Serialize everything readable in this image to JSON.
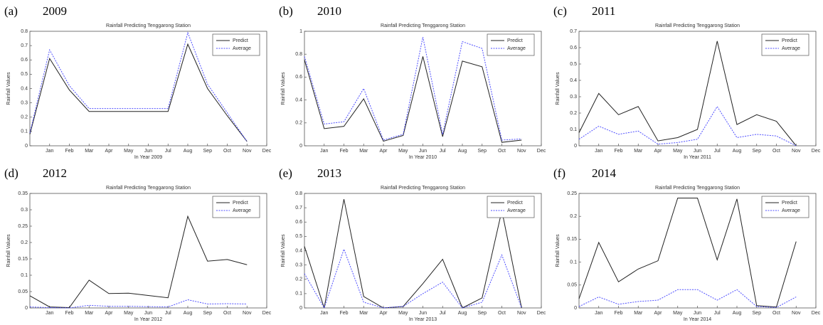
{
  "chart_data": [
    {
      "type": "line",
      "panel": "(a)",
      "year": "2009",
      "title": "Rainfall Predicting Tenggarong Station",
      "xlabel": "In Year 2009",
      "ylabel": "Rainfall Values",
      "x": [
        0,
        1,
        2,
        3,
        4,
        5,
        6,
        7,
        8,
        9,
        10,
        11
      ],
      "xlim": [
        0,
        12
      ],
      "xticks": [
        {
          "value": 1,
          "label": "Jan"
        },
        {
          "value": 2,
          "label": "Feb"
        },
        {
          "value": 3,
          "label": "Mar"
        },
        {
          "value": 4,
          "label": "Apr"
        },
        {
          "value": 5,
          "label": "May"
        },
        {
          "value": 6,
          "label": "Jun"
        },
        {
          "value": 7,
          "label": "Jul"
        },
        {
          "value": 8,
          "label": "Aug"
        },
        {
          "value": 9,
          "label": "Sep"
        },
        {
          "value": 10,
          "label": "Oct"
        },
        {
          "value": 11,
          "label": "Nov"
        },
        {
          "value": 12,
          "label": "Dec"
        }
      ],
      "ylim": [
        0,
        0.8
      ],
      "yticks": [
        0,
        0.1,
        0.2,
        0.3,
        0.4,
        0.5,
        0.6,
        0.7,
        0.8
      ],
      "legend": "upper right",
      "series": [
        {
          "name": "Predict",
          "color": "#222222",
          "style": "solid",
          "values": [
            0.08,
            0.61,
            0.39,
            0.24,
            0.24,
            0.24,
            0.24,
            0.24,
            0.71,
            0.4,
            0.21,
            0.03
          ]
        },
        {
          "name": "Average",
          "color": "#5050ff",
          "style": "dotted",
          "values": [
            0.09,
            0.67,
            0.42,
            0.26,
            0.26,
            0.26,
            0.26,
            0.26,
            0.79,
            0.43,
            0.23,
            0.03
          ]
        }
      ]
    },
    {
      "type": "line",
      "panel": "(b)",
      "year": "2010",
      "title": "Rainfall Predicting Tenggarong Station",
      "xlabel": "In Year 2010",
      "ylabel": "Rainfall Values",
      "x": [
        0,
        1,
        2,
        3,
        4,
        5,
        6,
        7,
        8,
        9,
        10,
        11
      ],
      "xlim": [
        0,
        12
      ],
      "xticks": [
        {
          "value": 1,
          "label": "Jan"
        },
        {
          "value": 2,
          "label": "Feb"
        },
        {
          "value": 3,
          "label": "Mar"
        },
        {
          "value": 4,
          "label": "Apr"
        },
        {
          "value": 5,
          "label": "May"
        },
        {
          "value": 6,
          "label": "Jun"
        },
        {
          "value": 7,
          "label": "Jul"
        },
        {
          "value": 8,
          "label": "Aug"
        },
        {
          "value": 9,
          "label": "Sep"
        },
        {
          "value": 10,
          "label": "Oct"
        },
        {
          "value": 11,
          "label": "Nov"
        },
        {
          "value": 12,
          "label": "Dec"
        }
      ],
      "ylim": [
        0,
        1
      ],
      "yticks": [
        0,
        0.2,
        0.4,
        0.6,
        0.8,
        1
      ],
      "legend": "upper right",
      "series": [
        {
          "name": "Predict",
          "color": "#222222",
          "style": "solid",
          "values": [
            0.75,
            0.15,
            0.17,
            0.41,
            0.04,
            0.09,
            0.78,
            0.08,
            0.74,
            0.69,
            0.03,
            0.05
          ]
        },
        {
          "name": "Average",
          "color": "#5050ff",
          "style": "dotted",
          "values": [
            0.78,
            0.19,
            0.21,
            0.5,
            0.05,
            0.1,
            0.95,
            0.1,
            0.91,
            0.85,
            0.05,
            0.06
          ]
        }
      ]
    },
    {
      "type": "line",
      "panel": "(c)",
      "year": "2011",
      "title": "Rainfall Predicting Tenggarong Station",
      "xlabel": "In Year 2011",
      "ylabel": "Rainfall Values",
      "x": [
        0,
        1,
        2,
        3,
        4,
        5,
        6,
        7,
        8,
        9,
        10,
        11
      ],
      "xlim": [
        0,
        12
      ],
      "xticks": [
        {
          "value": 1,
          "label": "Jan"
        },
        {
          "value": 2,
          "label": "Feb"
        },
        {
          "value": 3,
          "label": "Mar"
        },
        {
          "value": 4,
          "label": "Apr"
        },
        {
          "value": 5,
          "label": "May"
        },
        {
          "value": 6,
          "label": "Jun"
        },
        {
          "value": 7,
          "label": "Jul"
        },
        {
          "value": 8,
          "label": "Aug"
        },
        {
          "value": 9,
          "label": "Sep"
        },
        {
          "value": 10,
          "label": "Oct"
        },
        {
          "value": 11,
          "label": "Nov"
        },
        {
          "value": 12,
          "label": "Dec"
        }
      ],
      "ylim": [
        0,
        0.7
      ],
      "yticks": [
        0,
        0.1,
        0.2,
        0.3,
        0.4,
        0.5,
        0.6,
        0.7
      ],
      "legend": "upper right",
      "series": [
        {
          "name": "Predict",
          "color": "#222222",
          "style": "solid",
          "values": [
            0.08,
            0.32,
            0.19,
            0.24,
            0.03,
            0.05,
            0.1,
            0.64,
            0.13,
            0.19,
            0.15,
            0.0
          ]
        },
        {
          "name": "Average",
          "color": "#5050ff",
          "style": "dotted",
          "values": [
            0.04,
            0.12,
            0.07,
            0.09,
            0.01,
            0.02,
            0.04,
            0.24,
            0.05,
            0.07,
            0.06,
            0.0
          ]
        }
      ]
    },
    {
      "type": "line",
      "panel": "(d)",
      "year": "2012",
      "title": "Rainfall Predicting Tenggarong Station",
      "xlabel": "In Year 2012",
      "ylabel": "Rainfall Values",
      "x": [
        0,
        1,
        2,
        3,
        4,
        5,
        6,
        7,
        8,
        9,
        10,
        11
      ],
      "xlim": [
        0,
        12
      ],
      "xticks": [
        {
          "value": 1,
          "label": "Jan"
        },
        {
          "value": 2,
          "label": "Feb"
        },
        {
          "value": 3,
          "label": "Mar"
        },
        {
          "value": 4,
          "label": "Apr"
        },
        {
          "value": 5,
          "label": "May"
        },
        {
          "value": 6,
          "label": "Jun"
        },
        {
          "value": 7,
          "label": "Jul"
        },
        {
          "value": 8,
          "label": "Aug"
        },
        {
          "value": 9,
          "label": "Sep"
        },
        {
          "value": 10,
          "label": "Oct"
        },
        {
          "value": 11,
          "label": "Nov"
        },
        {
          "value": 12,
          "label": "Dec"
        }
      ],
      "ylim": [
        0,
        0.35
      ],
      "yticks": [
        0,
        0.05,
        0.1,
        0.15,
        0.2,
        0.25,
        0.3,
        0.35
      ],
      "legend": "upper right",
      "series": [
        {
          "name": "Predict",
          "color": "#222222",
          "style": "solid",
          "values": [
            0.037,
            0.003,
            0.001,
            0.085,
            0.044,
            0.045,
            0.038,
            0.031,
            0.28,
            0.143,
            0.148,
            0.132
          ]
        },
        {
          "name": "Average",
          "color": "#5050ff",
          "style": "dotted",
          "values": [
            0.003,
            0.001,
            0.0,
            0.008,
            0.005,
            0.005,
            0.004,
            0.003,
            0.025,
            0.012,
            0.013,
            0.012
          ]
        }
      ]
    },
    {
      "type": "line",
      "panel": "(e)",
      "year": "2013",
      "title": "Rainfall Predicting Tenggarong Station",
      "xlabel": "In Year 2013",
      "ylabel": "Rainfall Values",
      "x": [
        0,
        1,
        2,
        3,
        4,
        5,
        6,
        7,
        8,
        9,
        10,
        11
      ],
      "xlim": [
        0,
        12
      ],
      "xticks": [
        {
          "value": 1,
          "label": "Jan"
        },
        {
          "value": 2,
          "label": "Feb"
        },
        {
          "value": 3,
          "label": "Mar"
        },
        {
          "value": 4,
          "label": "Apr"
        },
        {
          "value": 5,
          "label": "May"
        },
        {
          "value": 6,
          "label": "Jun"
        },
        {
          "value": 7,
          "label": "Jul"
        },
        {
          "value": 8,
          "label": "Aug"
        },
        {
          "value": 9,
          "label": "Sep"
        },
        {
          "value": 10,
          "label": "Oct"
        },
        {
          "value": 11,
          "label": "Nov"
        },
        {
          "value": 12,
          "label": "Dec"
        }
      ],
      "ylim": [
        0,
        0.8
      ],
      "yticks": [
        0,
        0.1,
        0.2,
        0.3,
        0.4,
        0.5,
        0.6,
        0.7,
        0.8
      ],
      "legend": "upper right",
      "series": [
        {
          "name": "Predict",
          "color": "#222222",
          "style": "solid",
          "values": [
            0.43,
            0.0,
            0.76,
            0.08,
            0.0,
            0.01,
            0.17,
            0.34,
            0.0,
            0.07,
            0.68,
            0.0
          ]
        },
        {
          "name": "Average",
          "color": "#5050ff",
          "style": "dotted",
          "values": [
            0.24,
            0.0,
            0.41,
            0.04,
            0.0,
            0.01,
            0.1,
            0.18,
            0.0,
            0.04,
            0.37,
            0.0
          ]
        }
      ]
    },
    {
      "type": "line",
      "panel": "(f)",
      "year": "2014",
      "title": "Rainfall Predicting Tenggarong Station",
      "xlabel": "In Year 2014",
      "ylabel": "Rainfall Values",
      "x": [
        0,
        1,
        2,
        3,
        4,
        5,
        6,
        7,
        8,
        9,
        10,
        11
      ],
      "xlim": [
        0,
        12
      ],
      "xticks": [
        {
          "value": 1,
          "label": "Jan"
        },
        {
          "value": 2,
          "label": "Feb"
        },
        {
          "value": 3,
          "label": "Mar"
        },
        {
          "value": 4,
          "label": "Apr"
        },
        {
          "value": 5,
          "label": "May"
        },
        {
          "value": 6,
          "label": "Jun"
        },
        {
          "value": 7,
          "label": "Jul"
        },
        {
          "value": 8,
          "label": "Aug"
        },
        {
          "value": 9,
          "label": "Sep"
        },
        {
          "value": 10,
          "label": "Oct"
        },
        {
          "value": 11,
          "label": "Nov"
        },
        {
          "value": 12,
          "label": "Dec"
        }
      ],
      "ylim": [
        0,
        0.25
      ],
      "yticks": [
        0,
        0.05,
        0.1,
        0.15,
        0.2,
        0.25
      ],
      "legend": "upper right",
      "series": [
        {
          "name": "Predict",
          "color": "#222222",
          "style": "solid",
          "values": [
            0.02,
            0.143,
            0.057,
            0.085,
            0.103,
            0.24,
            0.24,
            0.105,
            0.238,
            0.005,
            0.002,
            0.145
          ]
        },
        {
          "name": "Average",
          "color": "#5050ff",
          "style": "dotted",
          "values": [
            0.003,
            0.024,
            0.008,
            0.014,
            0.017,
            0.04,
            0.04,
            0.017,
            0.04,
            0.003,
            0.001,
            0.024
          ]
        }
      ]
    }
  ]
}
